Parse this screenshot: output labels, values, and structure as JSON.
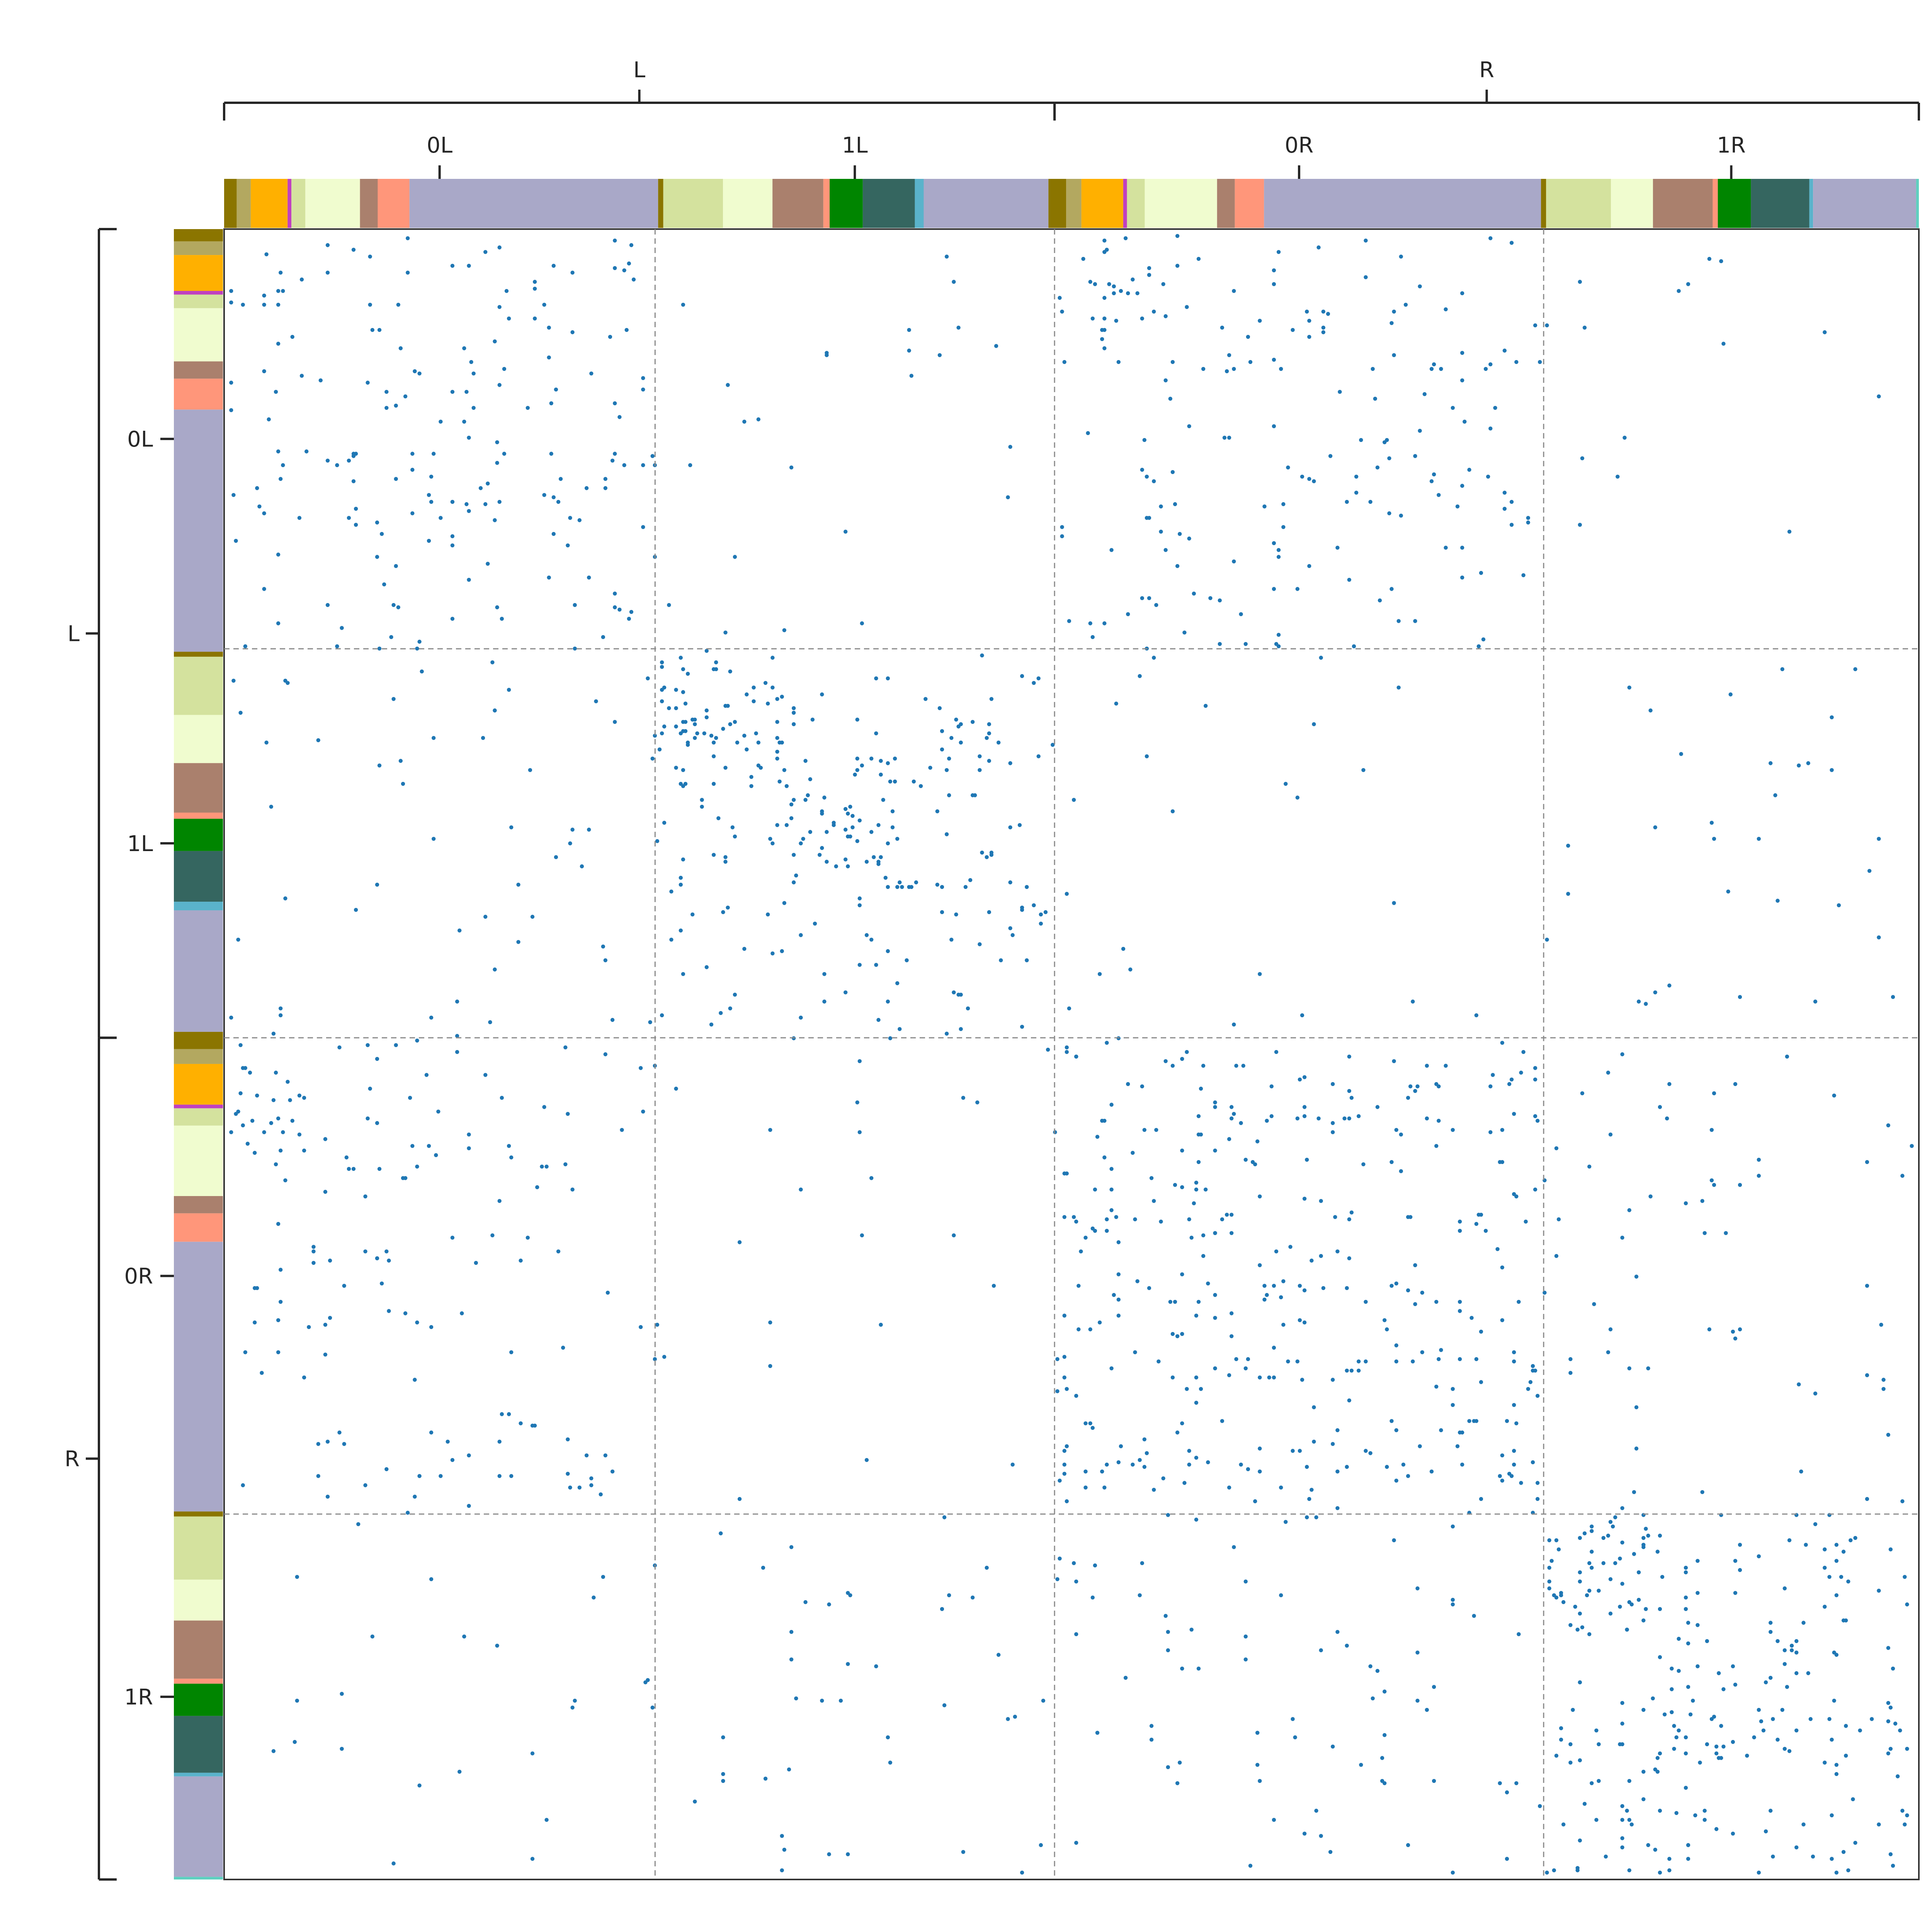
{
  "chart_data": {
    "type": "heatmap",
    "style": "adjacency spy plot (sparse matrix, dot per nonzero entry)",
    "marker_color": "#1f77b4",
    "grid": false,
    "hierarchy": {
      "top_level": [
        {
          "label": "L",
          "children": [
            "0L",
            "1L"
          ]
        },
        {
          "label": "R",
          "children": [
            "0R",
            "1R"
          ]
        }
      ],
      "blocks": [
        {
          "label": "0L",
          "size": 0.2543
        },
        {
          "label": "1L",
          "size": 0.2357
        },
        {
          "label": "0R",
          "size": 0.2886
        },
        {
          "label": "1R",
          "size": 0.2214
        }
      ]
    },
    "class_colors": {
      "c1": "#8b7500",
      "c2": "#b3a860",
      "c3": "#ffb000",
      "c4": "#c040c0",
      "c5": "#d4e29e",
      "c6": "#f0fccf",
      "c7": "#aa806d",
      "c8": "#ff967a",
      "c9": "#a9a8c8",
      "c10": "#008500",
      "c11": "#356660",
      "c12": "#5ab3cb",
      "c13": "#7c7c7c",
      "c14": "#5fd0c0"
    },
    "class_segments": [
      [
        "c1",
        0.0074
      ],
      [
        "c2",
        0.0082
      ],
      [
        "c3",
        0.0216
      ],
      [
        "c4",
        0.0022
      ],
      [
        "c5",
        0.0082
      ],
      [
        "c6",
        0.032
      ],
      [
        "c7",
        0.0104
      ],
      [
        "c8",
        0.0186
      ],
      [
        "c9",
        0.1457
      ],
      [
        "c1",
        0.003
      ],
      [
        "c5",
        0.035
      ],
      [
        "c6",
        0.029
      ],
      [
        "c7",
        0.0298
      ],
      [
        "c8",
        0.0037
      ],
      [
        "c10",
        0.0194
      ],
      [
        "c11",
        0.0305
      ],
      [
        "c12",
        0.0052
      ],
      [
        "c9",
        0.0731
      ],
      [
        "c1",
        0.0104
      ],
      [
        "c2",
        0.0089
      ],
      [
        "c3",
        0.0245
      ],
      [
        "c4",
        0.0022
      ],
      [
        "c5",
        0.0104
      ],
      [
        "c6",
        0.0424
      ],
      [
        "c7",
        0.0104
      ],
      [
        "c8",
        0.0171
      ],
      [
        "c9",
        0.1623
      ],
      [
        "c1",
        0.003
      ],
      [
        "c5",
        0.038
      ],
      [
        "c6",
        0.0246
      ],
      [
        "c7",
        0.035
      ],
      [
        "c8",
        0.003
      ],
      [
        "c10",
        0.0194
      ],
      [
        "c11",
        0.0342
      ],
      [
        "c12",
        0.0022
      ],
      [
        "c9",
        0.0604
      ],
      [
        "c14",
        0.0016
      ]
    ],
    "connection_density": [
      [
        0.16,
        0.025,
        0.14,
        0.015
      ],
      [
        0.05,
        0.2,
        0.02,
        0.035
      ],
      [
        0.11,
        0.018,
        0.24,
        0.055
      ],
      [
        0.025,
        0.045,
        0.07,
        0.21
      ]
    ],
    "dense_subblocks": [
      {
        "rows": [
          0.0,
          0.045
        ],
        "cols": [
          0.5058,
          0.54
        ],
        "density": 0.55
      },
      {
        "rows": [
          0.5058,
          0.55
        ],
        "cols": [
          0.0,
          0.045
        ],
        "density": 0.45
      },
      {
        "rows": [
          0.2543,
          0.32
        ],
        "cols": [
          0.2543,
          0.33
        ],
        "density": 0.5
      },
      {
        "rows": [
          0.78,
          0.85
        ],
        "cols": [
          0.7786,
          0.85
        ],
        "density": 0.55
      },
      {
        "rows": [
          0.32,
          0.4
        ],
        "cols": [
          0.32,
          0.4
        ],
        "density": 0.35
      },
      {
        "rows": [
          0.85,
          0.93
        ],
        "cols": [
          0.85,
          0.93
        ],
        "density": 0.35
      }
    ]
  }
}
